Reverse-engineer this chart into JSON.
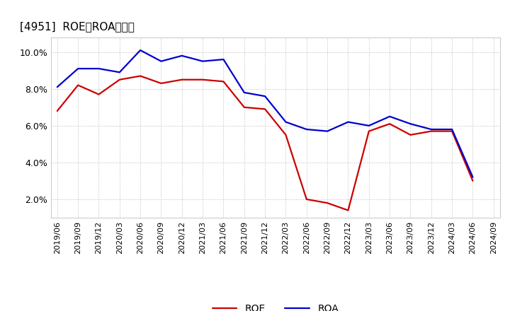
{
  "title": "[4951]  ROE、ROAの推移",
  "roe_dates": [
    "2019/06",
    "2019/09",
    "2019/12",
    "2020/03",
    "2020/06",
    "2020/09",
    "2020/12",
    "2021/03",
    "2021/06",
    "2021/09",
    "2021/12",
    "2022/03",
    "2022/06",
    "2022/09",
    "2022/12",
    "2023/03",
    "2023/06",
    "2023/09",
    "2023/12",
    "2024/03",
    "2024/06",
    "2024/09"
  ],
  "roe_values": [
    6.8,
    8.2,
    7.7,
    8.5,
    8.7,
    8.3,
    8.5,
    8.5,
    8.4,
    7.0,
    6.9,
    5.5,
    2.0,
    1.8,
    1.4,
    5.7,
    6.1,
    5.5,
    5.7,
    5.7,
    3.0,
    null
  ],
  "roa_dates": [
    "2019/06",
    "2019/09",
    "2019/12",
    "2020/03",
    "2020/06",
    "2020/09",
    "2020/12",
    "2021/03",
    "2021/06",
    "2021/09",
    "2021/12",
    "2022/03",
    "2022/06",
    "2022/09",
    "2022/12",
    "2023/03",
    "2023/06",
    "2023/09",
    "2023/12",
    "2024/03",
    "2024/06",
    "2024/09"
  ],
  "roa_values": [
    8.1,
    9.1,
    9.1,
    8.9,
    10.1,
    9.5,
    9.8,
    9.5,
    9.6,
    7.8,
    7.6,
    6.2,
    5.8,
    5.7,
    6.2,
    6.0,
    6.5,
    6.1,
    5.8,
    5.8,
    3.2,
    null
  ],
  "roe_color": "#cc0000",
  "roa_color": "#0000cc",
  "ylim_min": 1.0,
  "ylim_max": 10.8,
  "yticks": [
    2.0,
    4.0,
    6.0,
    8.0,
    10.0
  ],
  "bg_color": "#ffffff",
  "grid_color": "#bbbbbb",
  "line_width": 1.6,
  "title_fontsize": 11,
  "tick_fontsize": 8,
  "legend_fontsize": 10
}
